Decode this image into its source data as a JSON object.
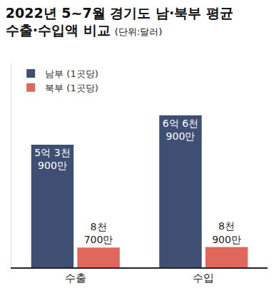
{
  "chart_data": {
    "type": "bar",
    "title": "2022년 5~7월 경기도 남·북부 평균\n수출·수입액 비교",
    "subtitle": "(단위:달러)",
    "categories": [
      "수출",
      "수입"
    ],
    "series": [
      {
        "name": "남부 (1곳당)",
        "color": "#3e4f73",
        "values": [
          539000000,
          669000000
        ],
        "value_labels": [
          "5억 3천\n900만",
          "6억 6천\n900만"
        ]
      },
      {
        "name": "북부 (1곳당)",
        "color": "#e0675b",
        "values": [
          87000000,
          89000000
        ],
        "value_labels": [
          "8천\n700만",
          "8천\n900만"
        ]
      }
    ],
    "ylim": [
      0,
      900000000
    ],
    "yticks": [],
    "tick_labels": "x",
    "grid": false,
    "legend": "upper left",
    "data_labels": true
  }
}
